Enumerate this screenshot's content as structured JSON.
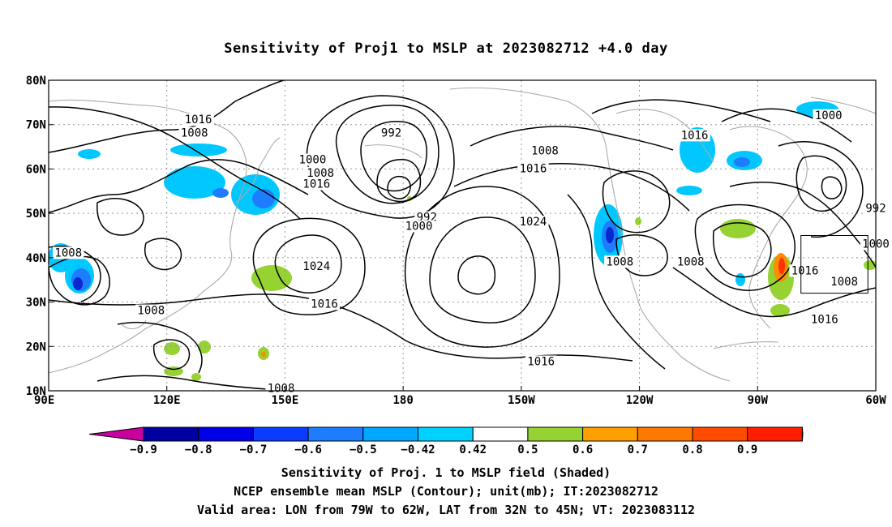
{
  "title": "Sensitivity of Proj1 to MSLP at 2023082712 +4.0 day",
  "map": {
    "lon_range": [
      90,
      300
    ],
    "lat_range": [
      10,
      80
    ],
    "lat_ticks": [
      {
        "value": 80,
        "label": "80N"
      },
      {
        "value": 70,
        "label": "70N"
      },
      {
        "value": 60,
        "label": "60N"
      },
      {
        "value": 50,
        "label": "50N"
      },
      {
        "value": 40,
        "label": "40N"
      },
      {
        "value": 30,
        "label": "30N"
      },
      {
        "value": 20,
        "label": "20N"
      },
      {
        "value": 10,
        "label": "10N"
      }
    ],
    "lon_ticks": [
      {
        "value": 90,
        "label": "90E"
      },
      {
        "value": 120,
        "label": "120E"
      },
      {
        "value": 150,
        "label": "150E"
      },
      {
        "value": 180,
        "label": "180"
      },
      {
        "value": 210,
        "label": "150W"
      },
      {
        "value": 240,
        "label": "120W"
      },
      {
        "value": 270,
        "label": "90W"
      },
      {
        "value": 300,
        "label": "60W"
      }
    ],
    "grid": "dotted",
    "contour_labels": [
      {
        "text": "1016",
        "lon": 128,
        "lat": 71
      },
      {
        "text": "1008",
        "lon": 127,
        "lat": 68
      },
      {
        "text": "992",
        "lon": 177,
        "lat": 68
      },
      {
        "text": "1000",
        "lon": 157,
        "lat": 62
      },
      {
        "text": "1008",
        "lon": 159,
        "lat": 59
      },
      {
        "text": "1016",
        "lon": 158,
        "lat": 56.5
      },
      {
        "text": "992",
        "lon": 186,
        "lat": 49
      },
      {
        "text": "1000",
        "lon": 184,
        "lat": 47
      },
      {
        "text": "1008",
        "lon": 216,
        "lat": 64
      },
      {
        "text": "1016",
        "lon": 213,
        "lat": 60
      },
      {
        "text": "1024",
        "lon": 213,
        "lat": 48
      },
      {
        "text": "1024",
        "lon": 158,
        "lat": 38
      },
      {
        "text": "1008",
        "lon": 95,
        "lat": 41
      },
      {
        "text": "1008",
        "lon": 116,
        "lat": 28
      },
      {
        "text": "1016",
        "lon": 160,
        "lat": 29.5
      },
      {
        "text": "1016",
        "lon": 215,
        "lat": 16.5
      },
      {
        "text": "1008",
        "lon": 149,
        "lat": 10.5
      },
      {
        "text": "1016",
        "lon": 254,
        "lat": 67.5
      },
      {
        "text": "1008",
        "lon": 235,
        "lat": 39
      },
      {
        "text": "1008",
        "lon": 253,
        "lat": 39
      },
      {
        "text": "1000",
        "lon": 288,
        "lat": 72
      },
      {
        "text": "992",
        "lon": 300,
        "lat": 51
      },
      {
        "text": "1000",
        "lon": 300,
        "lat": 43
      },
      {
        "text": "1016",
        "lon": 282,
        "lat": 37
      },
      {
        "text": "1008",
        "lon": 292,
        "lat": 34.5
      },
      {
        "text": "1016",
        "lon": 287,
        "lat": 26
      }
    ],
    "valid_box": {
      "lon": [
        281,
        298
      ],
      "lat": [
        32,
        45
      ]
    },
    "colors": {
      "contour": "#000000",
      "coast": "#aaaaaa",
      "grid": "#999999",
      "neg_light": "#00c8ff",
      "neg_mid": "#1e7dff",
      "neg_dark": "#0a28d0",
      "pos_green": "#96d232",
      "pos_orange": "#ff8c00",
      "pos_red": "#ff3200"
    }
  },
  "colorbar": {
    "levels": [
      "−0.9",
      "−0.8",
      "−0.7",
      "−0.6",
      "−0.5",
      "−0.42",
      "0.42",
      "0.5",
      "0.6",
      "0.7",
      "0.8",
      "0.9"
    ],
    "colors": [
      "#c800a0",
      "#0000a0",
      "#0000e6",
      "#0a3cff",
      "#1e7dff",
      "#00a8ff",
      "#00d2ff",
      "#ffffff",
      "#96d232",
      "#ffa000",
      "#ff7800",
      "#ff4b00",
      "#ff1e00",
      "#ffa0c8"
    ]
  },
  "captions": [
    "Sensitivity of Proj. 1 to MSLP field (Shaded)",
    "NCEP ensemble mean MSLP (Contour); unit(mb); IT:2023082712",
    "Valid area: LON from 79W to 62W, LAT from 32N to 45N; VT: 2023083112"
  ]
}
